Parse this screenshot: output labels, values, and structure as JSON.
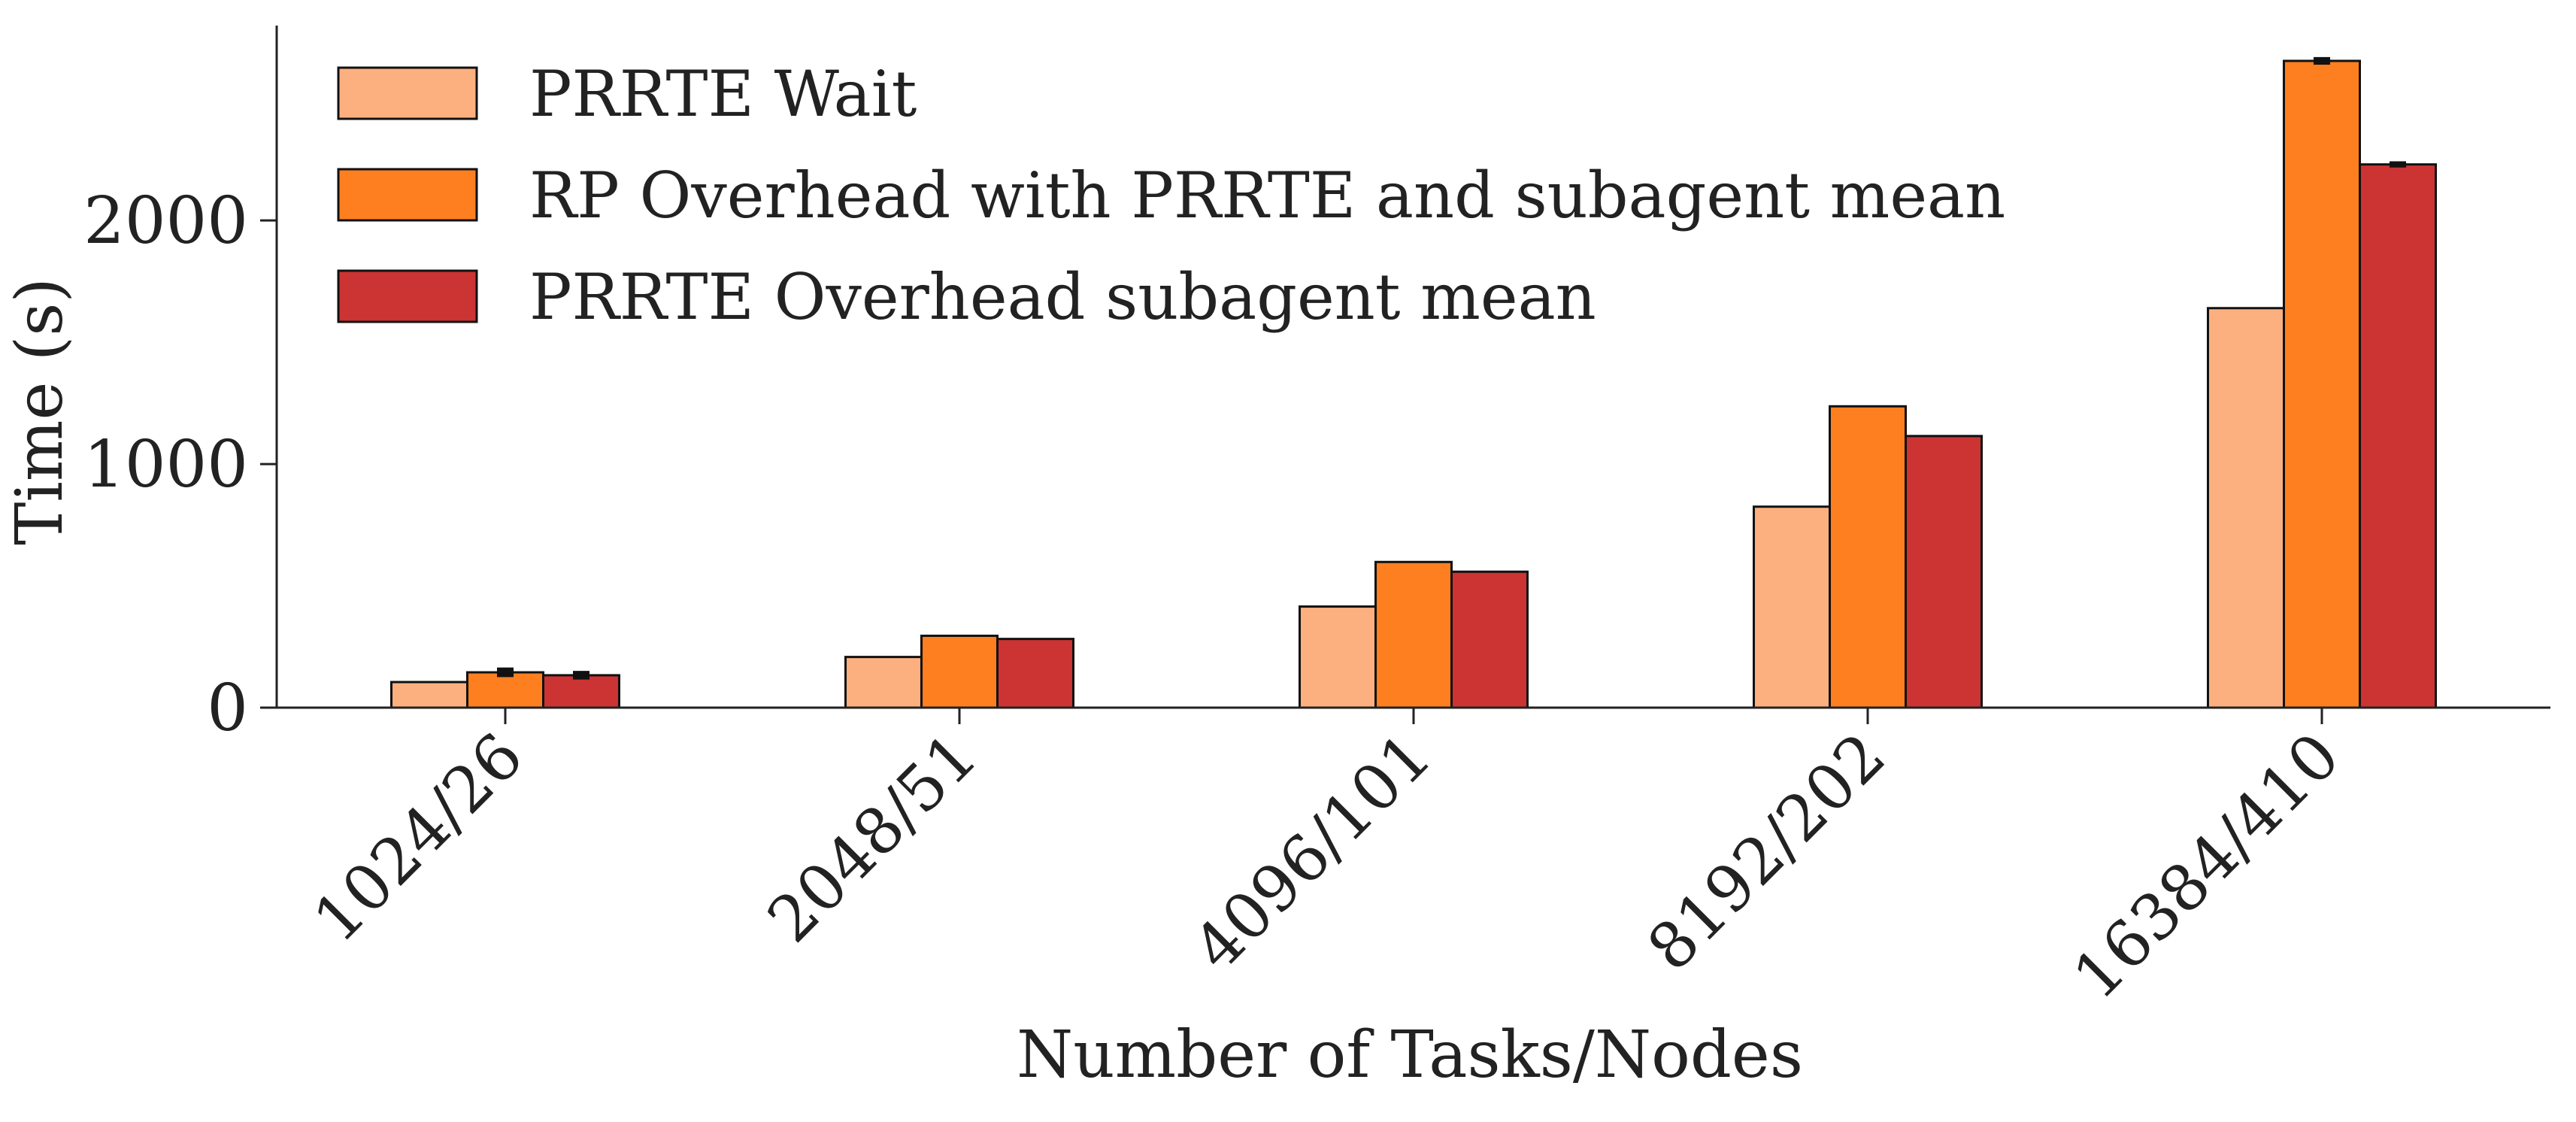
{
  "chart_data": {
    "type": "bar",
    "xlabel": "Number of Tasks/Nodes",
    "ylabel": "Time (s)",
    "categories": [
      "1024/26",
      "2048/51",
      "4096/101",
      "8192/202",
      "16384/410"
    ],
    "yticks": [
      0,
      1000,
      2000
    ],
    "ylim": [
      0,
      2800
    ],
    "grid": false,
    "legend_position": "top-left",
    "series": [
      {
        "name": "PRRTE Wait",
        "color": "#fdb07f",
        "values": [
          105,
          208,
          415,
          825,
          1640
        ],
        "errors": [
          0,
          0,
          0,
          0,
          0
        ]
      },
      {
        "name": "RP Overhead with PRRTE and subagent mean",
        "color": "#fd7f1f",
        "values": [
          145,
          295,
          598,
          1237,
          2655
        ],
        "errors": [
          12,
          0,
          0,
          0,
          8
        ]
      },
      {
        "name": "PRRTE Overhead subagent mean",
        "color": "#cc3333",
        "values": [
          133,
          282,
          558,
          1115,
          2230
        ],
        "errors": [
          10,
          0,
          0,
          0,
          5
        ]
      }
    ]
  }
}
